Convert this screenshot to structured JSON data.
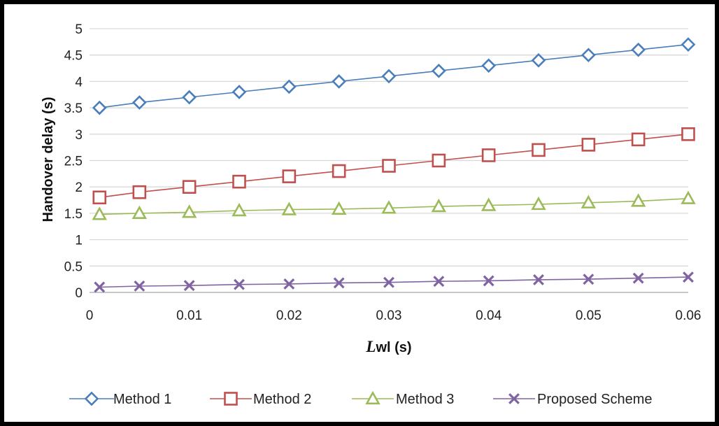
{
  "chart_data": {
    "type": "line",
    "x": [
      0.001,
      0.005,
      0.01,
      0.015,
      0.02,
      0.025,
      0.03,
      0.035,
      0.04,
      0.045,
      0.05,
      0.055,
      0.06
    ],
    "xlim": [
      0,
      0.06
    ],
    "ylim": [
      0,
      5
    ],
    "x_ticks": [
      "0",
      "0.01",
      "0.02",
      "0.03",
      "0.04",
      "0.05",
      "0.06"
    ],
    "y_ticks": [
      "0",
      "0.5",
      "1",
      "1.5",
      "2",
      "2.5",
      "3",
      "3.5",
      "4",
      "4.5",
      "5"
    ],
    "xlabel_italic": "L",
    "xlabel_rest": "wl (s)",
    "ylabel": "Handover delay (s)",
    "grid": "horizontal",
    "legend_position": "bottom",
    "series": [
      {
        "name": "Method 1",
        "color": "#4a7ebb",
        "marker": "diamond",
        "values": [
          3.5,
          3.6,
          3.7,
          3.8,
          3.9,
          4.0,
          4.1,
          4.2,
          4.3,
          4.4,
          4.5,
          4.6,
          4.7
        ]
      },
      {
        "name": "Method 2",
        "color": "#c0504d",
        "marker": "square",
        "values": [
          1.8,
          1.9,
          2.0,
          2.1,
          2.2,
          2.3,
          2.4,
          2.5,
          2.6,
          2.7,
          2.8,
          2.9,
          3.0
        ]
      },
      {
        "name": "Method 3",
        "color": "#9bbb59",
        "marker": "triangle",
        "values": [
          1.48,
          1.5,
          1.52,
          1.55,
          1.57,
          1.58,
          1.6,
          1.63,
          1.65,
          1.67,
          1.7,
          1.73,
          1.78
        ]
      },
      {
        "name": "Proposed Scheme",
        "color": "#8064a2",
        "marker": "x",
        "values": [
          0.1,
          0.12,
          0.13,
          0.15,
          0.16,
          0.18,
          0.19,
          0.21,
          0.22,
          0.24,
          0.25,
          0.27,
          0.29
        ]
      }
    ]
  }
}
